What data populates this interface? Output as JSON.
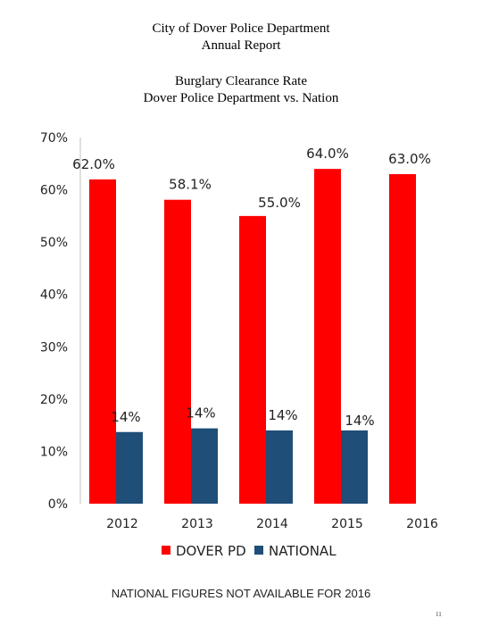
{
  "header": {
    "line1": "City of Dover Police Department",
    "line2": "Annual Report"
  },
  "footnote": "NATIONAL FIGURES NOT AVAILABLE FOR 2016",
  "page_number": "11",
  "chart_data": {
    "type": "bar",
    "title": "Burglary Clearance Rate",
    "subtitle": "Dover Police Department vs. Nation",
    "categories": [
      "2012",
      "2013",
      "2014",
      "2015",
      "2016"
    ],
    "ylim": [
      0,
      70
    ],
    "yticks": [
      0,
      10,
      20,
      30,
      40,
      50,
      60,
      70
    ],
    "ytick_labels": [
      "0%",
      "10%",
      "20%",
      "30%",
      "40%",
      "50%",
      "60%",
      "70%"
    ],
    "grid": false,
    "legend_position": "bottom",
    "series": [
      {
        "name": "DOVER PD",
        "color": "#ff0000",
        "values": [
          62.0,
          58.1,
          55.0,
          64.0,
          63.0
        ],
        "labels": [
          "62.0%",
          "58.1%",
          "55.0%",
          "64.0%",
          "63.0%"
        ]
      },
      {
        "name": "NATIONAL",
        "color": "#1f4e79",
        "values": [
          13.7,
          14.4,
          14.0,
          14.0,
          null
        ],
        "labels": [
          "14%",
          "14%",
          "14%",
          "14%",
          null
        ]
      }
    ]
  }
}
